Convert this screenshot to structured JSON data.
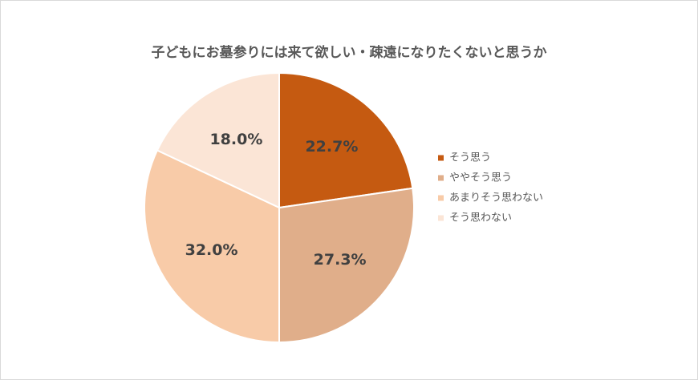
{
  "chart_data": {
    "type": "pie",
    "title": "子どもにお墓参りには来て欲しい・疎遠になりたくないと思うか",
    "categories": [
      "そう思う",
      "ややそう思う",
      "あまりそう思わない",
      "そう思わない"
    ],
    "values": [
      22.7,
      27.3,
      32.0,
      18.0
    ],
    "value_labels": [
      "22.7%",
      "27.3%",
      "32.0%",
      "18.0%"
    ],
    "colors": [
      "#c55a11",
      "#e0ae8a",
      "#f8cba8",
      "#fbe5d6"
    ],
    "legend": "right"
  }
}
